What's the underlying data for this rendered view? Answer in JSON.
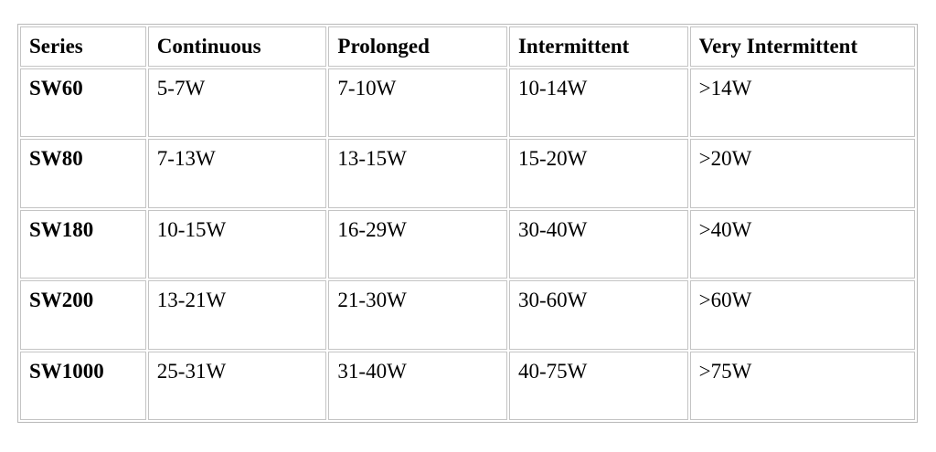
{
  "table": {
    "headers": [
      "Series",
      "Continuous",
      "Prolonged",
      "Intermittent",
      "Very Intermittent"
    ],
    "rows": [
      [
        "SW60",
        "5-7W",
        "7-10W",
        "10-14W",
        ">14W"
      ],
      [
        "SW80",
        "7-13W",
        "13-15W",
        "15-20W",
        ">20W"
      ],
      [
        "SW180",
        "10-15W",
        "16-29W",
        "30-40W",
        ">40W"
      ],
      [
        "SW200",
        "13-21W",
        "21-30W",
        "30-60W",
        ">60W"
      ],
      [
        "SW1000",
        "25-31W",
        "31-40W",
        "40-75W",
        ">75W"
      ]
    ]
  }
}
